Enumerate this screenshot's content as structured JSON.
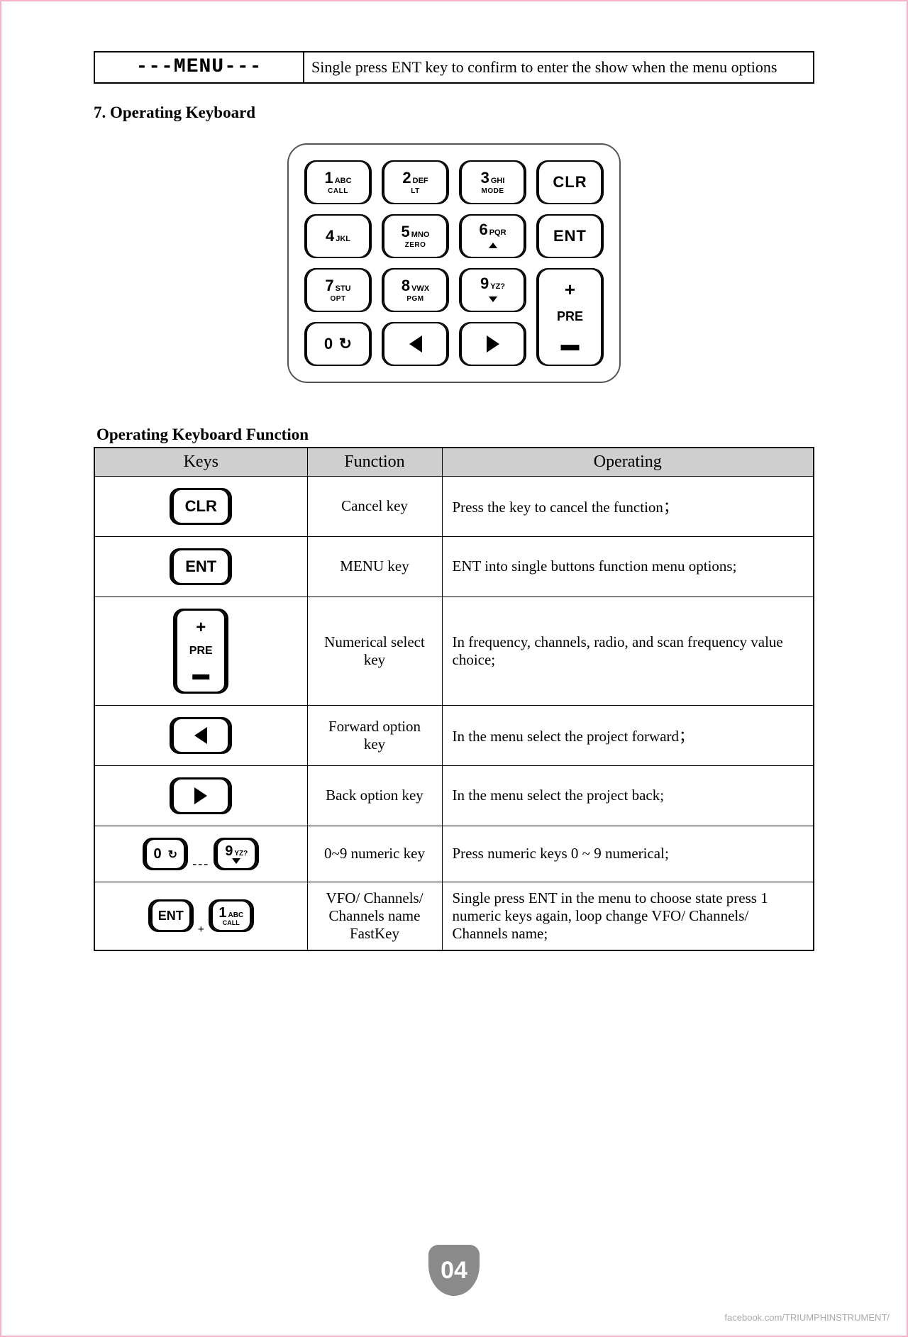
{
  "menu_row": {
    "label": "---MENU---",
    "description": "Single press ENT key to confirm to enter the show when the menu options"
  },
  "section_title": "7.  Operating Keyboard",
  "keyboard": {
    "keys": [
      {
        "num": "1",
        "letters": "ABC",
        "sub": "CALL"
      },
      {
        "num": "2",
        "letters": "DEF",
        "sub": "LT"
      },
      {
        "num": "3",
        "letters": "GHI",
        "sub": "MODE"
      },
      {
        "text": "CLR"
      },
      {
        "num": "4",
        "letters": "JKL",
        "sub": ""
      },
      {
        "num": "5",
        "letters": "MNO",
        "sub": "ZERO"
      },
      {
        "num": "6",
        "letters": "PQR",
        "sub": "▲"
      },
      {
        "text": "ENT"
      },
      {
        "num": "7",
        "letters": "STU",
        "sub": "OPT"
      },
      {
        "num": "8",
        "letters": "VWX",
        "sub": "PGM"
      },
      {
        "num": "9",
        "letters": "YZ?",
        "sub": "▼"
      },
      {
        "pre": true
      },
      {
        "num": "0",
        "cycle": true
      },
      {
        "arrow": "left"
      },
      {
        "arrow": "right"
      }
    ]
  },
  "subheading": "Operating Keyboard Function",
  "table": {
    "headers": [
      "Keys",
      "Function",
      "Operating"
    ],
    "rows": [
      {
        "key": "CLR",
        "function": "Cancel key",
        "operating": "Press the key to cancel the function；"
      },
      {
        "key": "ENT",
        "function": "MENU key",
        "operating": "ENT into single buttons function menu options;"
      },
      {
        "key": "PRE",
        "function": "Numerical select key",
        "operating": "In frequency, channels, radio, and scan frequency value choice;",
        "justify": true
      },
      {
        "key": "LEFT",
        "function": "Forward option key",
        "operating": "In the menu select the project forward；"
      },
      {
        "key": "RIGHT",
        "function": "Back option key",
        "operating": "In the menu select the project back;"
      },
      {
        "key": "0-9",
        "function": "0~9 numeric key",
        "operating": "Press numeric keys 0 ~ 9 numerical;"
      },
      {
        "key": "ENT+1",
        "function": "VFO/ Channels/ Channels name FastKey",
        "operating": "Single press ENT in the menu to choose state press 1 numeric keys again, loop change VFO/ Channels/ Channels name;",
        "justify": true
      }
    ]
  },
  "page_number": "04",
  "footer": "facebook.com/TRIUMPHINSTRUMENT/",
  "colors": {
    "border": "#f5b3c9",
    "table_header_bg": "#cfcfcf",
    "badge_bg": "#8a8a8a"
  }
}
